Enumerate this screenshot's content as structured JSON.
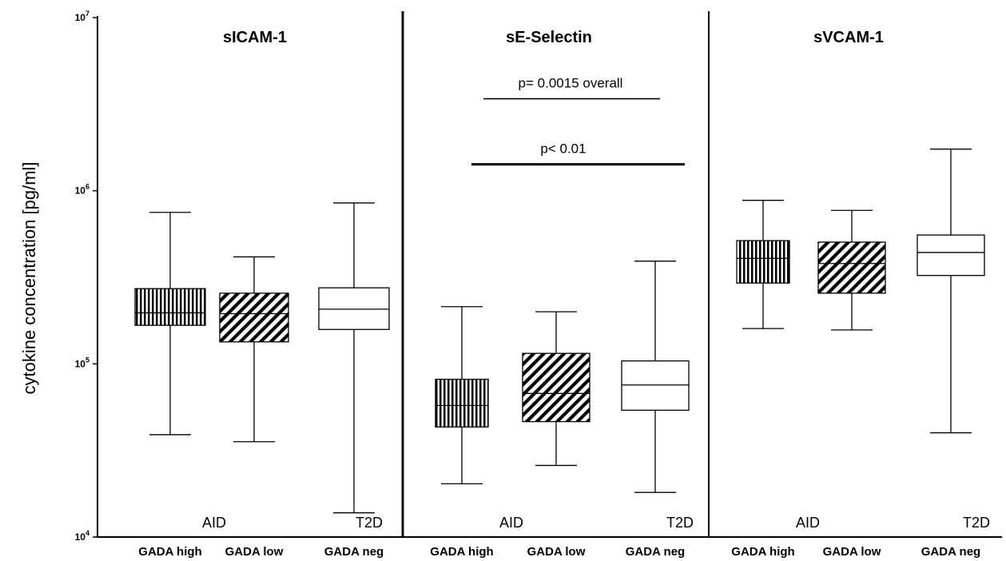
{
  "chart_data": {
    "type": "box",
    "ylabel": "cytokine concentration [pg/ml]",
    "y_scale": "log",
    "ylim": [
      10000,
      10000000
    ],
    "y_ticks": [
      {
        "value": 10000,
        "base": "10",
        "exp": "4"
      },
      {
        "value": 100000,
        "base": "10",
        "exp": "5"
      },
      {
        "value": 1000000,
        "base": "10",
        "exp": "6"
      },
      {
        "value": 10000000,
        "base": "10",
        "exp": "7"
      }
    ],
    "categories": [
      "GADA high",
      "GADA low",
      "GADA neg"
    ],
    "fills": [
      "vertical-stripes",
      "diagonal-stripes",
      "white"
    ],
    "colors": {
      "box": "#000000",
      "background": "#ffffff"
    },
    "panels": [
      {
        "title": "sICAM-1",
        "groups": [
          "AID",
          "T2D"
        ],
        "boxes": [
          {
            "category": "GADA high",
            "whisker_low": 39000,
            "q1": 167000,
            "median": 197000,
            "q3": 272000,
            "whisker_high": 750000
          },
          {
            "category": "GADA low",
            "whisker_low": 35500,
            "q1": 134000,
            "median": 195000,
            "q3": 256000,
            "whisker_high": 415000
          },
          {
            "category": "GADA neg",
            "whisker_low": 13800,
            "q1": 158000,
            "median": 207000,
            "q3": 275000,
            "whisker_high": 850000
          }
        ],
        "annotations": []
      },
      {
        "title": "sE-Selectin",
        "groups": [
          "AID",
          "T2D"
        ],
        "boxes": [
          {
            "category": "GADA high",
            "whisker_low": 20300,
            "q1": 43200,
            "median": 57500,
            "q3": 81500,
            "whisker_high": 214000
          },
          {
            "category": "GADA low",
            "whisker_low": 25900,
            "q1": 46400,
            "median": 67500,
            "q3": 115000,
            "whisker_high": 200000
          },
          {
            "category": "GADA neg",
            "whisker_low": 18100,
            "q1": 54000,
            "median": 75500,
            "q3": 104000,
            "whisker_high": 392000
          }
        ],
        "annotations": [
          {
            "text": "p= 0.0015   overall",
            "y": 3400000,
            "from": 0,
            "to": 2,
            "line_weight": "thin"
          },
          {
            "text": "p< 0.01",
            "y": 1420000,
            "from": 0,
            "to": 2,
            "line_weight": "thick"
          }
        ]
      },
      {
        "title": "sVCAM-1",
        "groups": [
          "AID",
          "T2D"
        ],
        "boxes": [
          {
            "category": "GADA high",
            "whisker_low": 160000,
            "q1": 293000,
            "median": 407000,
            "q3": 515000,
            "whisker_high": 880000
          },
          {
            "category": "GADA low",
            "whisker_low": 157000,
            "q1": 256000,
            "median": 380000,
            "q3": 505000,
            "whisker_high": 770000
          },
          {
            "category": "GADA neg",
            "whisker_low": 40000,
            "q1": 324000,
            "median": 440000,
            "q3": 555000,
            "whisker_high": 1740000
          }
        ],
        "annotations": []
      }
    ]
  }
}
